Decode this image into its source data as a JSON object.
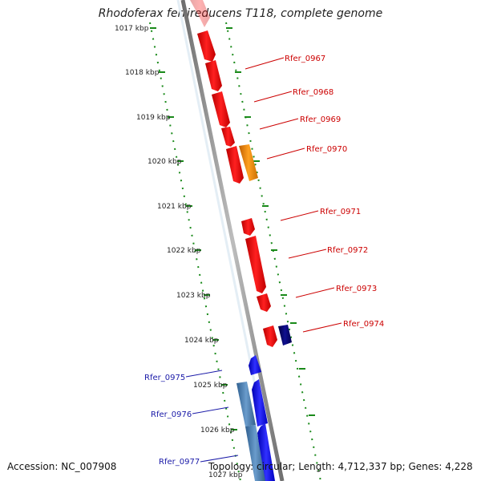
{
  "title": "Rhodoferax ferrireducens T118, complete genome",
  "footer": {
    "accession": "Accession: NC_007908",
    "summary": "Topology: circular; Length: 4,712,337 bp; Genes: 4,228"
  },
  "colors": {
    "red_gene": "#ee0000",
    "orange_gene": "#f08c00",
    "navy_gene": "#00006e",
    "blue_gene": "#1010e8",
    "steel_gene": "#4a7fb0",
    "tick_green": "#1a8a1a",
    "backbone": "#8a8a8a",
    "label_red": "#cc0000",
    "label_blue": "#1a1aa8"
  },
  "kbp_labels": [
    "1017 kbp",
    "1018 kbp",
    "1019 kbp",
    "1020 kbp",
    "1021 kbp",
    "1022 kbp",
    "1023 kbp",
    "1024 kbp",
    "1025 kbp",
    "1026 kbp",
    "1027 kbp"
  ],
  "gene_labels_right": [
    "Rfer_0967",
    "Rfer_0968",
    "Rfer_0969",
    "Rfer_0970",
    "Rfer_0971",
    "Rfer_0972",
    "Rfer_0973",
    "Rfer_0974"
  ],
  "gene_labels_left": [
    "Rfer_0975",
    "Rfer_0976",
    "Rfer_0977"
  ]
}
